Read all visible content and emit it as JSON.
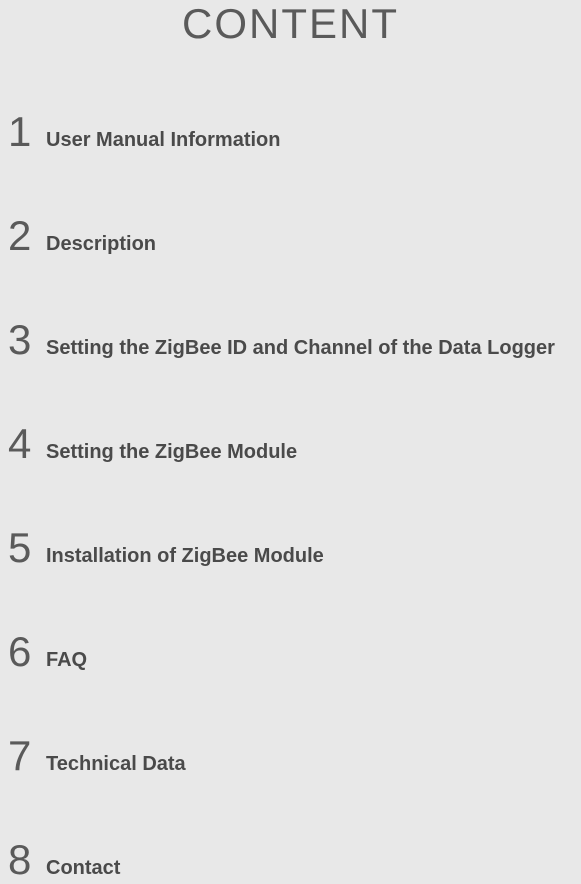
{
  "title": "CONTENT",
  "title_fontsize": 42,
  "title_color": "#5a5a5a",
  "background_color": "#e8e8e8",
  "number_fontsize": 42,
  "number_color": "#5a5a5a",
  "label_fontsize": 20,
  "label_color": "#4a4a4a",
  "items": [
    {
      "num": "1",
      "label": "User Manual Information"
    },
    {
      "num": "2",
      "label": "Description"
    },
    {
      "num": "3",
      "label": "Setting the ZigBee ID and Channel of the Data Logger"
    },
    {
      "num": "4",
      "label": "Setting the ZigBee Module"
    },
    {
      "num": "5",
      "label": "Installation of ZigBee Module"
    },
    {
      "num": "6",
      "label": "FAQ"
    },
    {
      "num": "7",
      "label": "Technical Data"
    },
    {
      "num": "8",
      "label": "Contact"
    }
  ]
}
